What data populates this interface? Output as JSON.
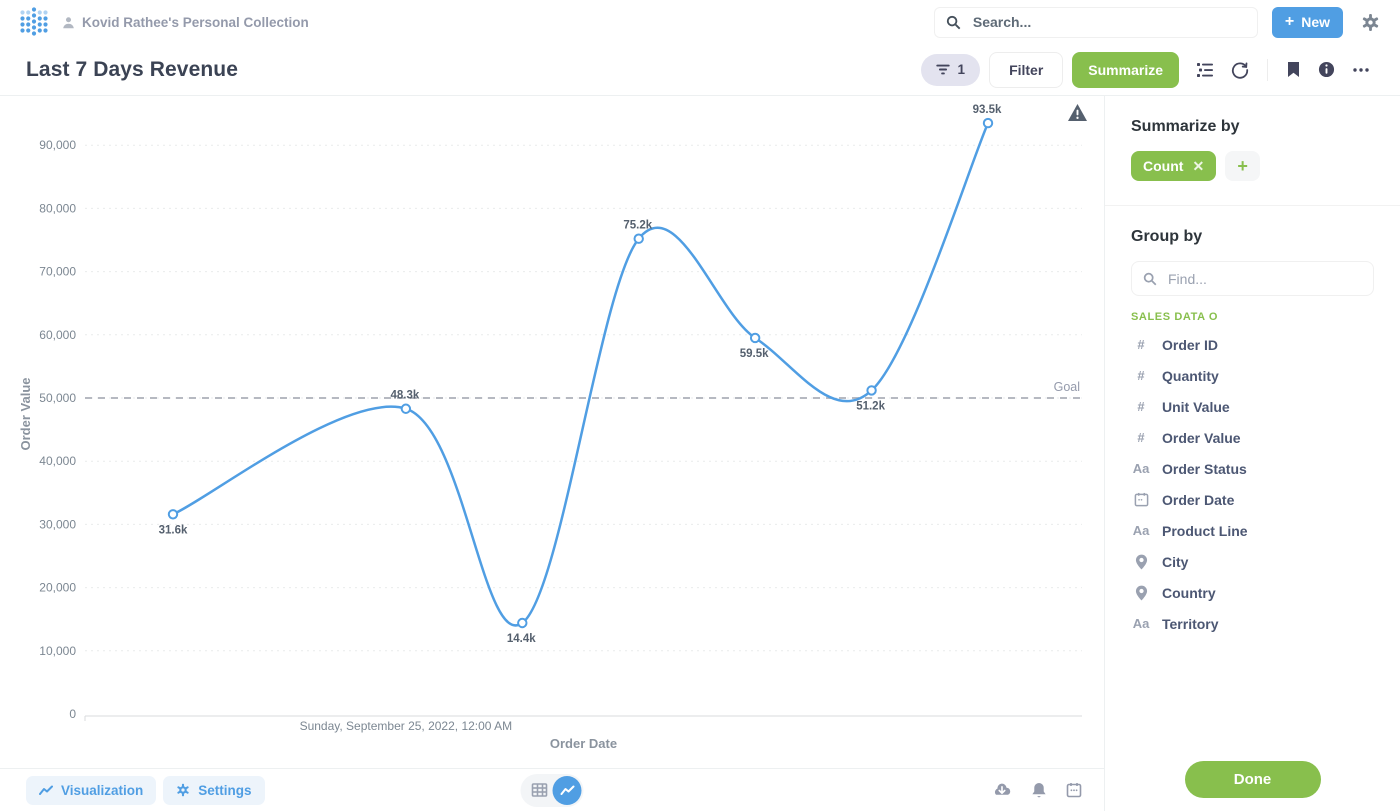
{
  "header": {
    "collection_label": "Kovid Rathee's Personal Collection",
    "search_placeholder": "Search...",
    "new_button_label": "New"
  },
  "title_bar": {
    "title": "Last 7 Days Revenue",
    "filter_count": "1",
    "filter_button_label": "Filter",
    "summarize_button_label": "Summarize"
  },
  "chart_data": {
    "type": "line",
    "title": "Last 7 Days Revenue",
    "xlabel": "Order Date",
    "ylabel": "Order Value",
    "x_tick_label": "Sunday, September 25, 2022, 12:00 AM",
    "x_tick_at_offset": 2,
    "x_day_offsets": [
      0,
      2,
      3,
      4,
      5,
      6,
      7
    ],
    "values": [
      31600,
      48300,
      14400,
      75200,
      59500,
      51200,
      93500
    ],
    "point_labels": [
      "31.6k",
      "48.3k",
      "14.4k",
      "75.2k",
      "59.5k",
      "51.2k",
      "93.5k"
    ],
    "label_positions": [
      "below",
      "above",
      "below",
      "above",
      "below",
      "below",
      "above"
    ],
    "y_ticks": [
      0,
      10000,
      20000,
      30000,
      40000,
      50000,
      60000,
      70000,
      80000,
      90000
    ],
    "ylim": [
      0,
      95000
    ],
    "goal": {
      "value": 50000,
      "label": "Goal"
    },
    "line_color": "#509EE3",
    "grid": true,
    "legend": "none"
  },
  "sidebar": {
    "summarize_by": {
      "heading": "Summarize by",
      "metric_label": "Count"
    },
    "group_by": {
      "heading": "Group by",
      "find_placeholder": "Find...",
      "section_label": "SALES DATA O",
      "fields": [
        {
          "label": "Order ID",
          "type": "number"
        },
        {
          "label": "Quantity",
          "type": "number"
        },
        {
          "label": "Unit Value",
          "type": "number"
        },
        {
          "label": "Order Value",
          "type": "number"
        },
        {
          "label": "Order Status",
          "type": "text"
        },
        {
          "label": "Order Date",
          "type": "date"
        },
        {
          "label": "Product Line",
          "type": "text"
        },
        {
          "label": "City",
          "type": "location"
        },
        {
          "label": "Country",
          "type": "location"
        },
        {
          "label": "Territory",
          "type": "text"
        }
      ]
    },
    "done_button_label": "Done"
  },
  "footer": {
    "visualization_button_label": "Visualization",
    "settings_button_label": "Settings"
  },
  "icons": {
    "number_glyph": "#",
    "text_glyph": "Aa"
  },
  "colors": {
    "brand_blue": "#509EE3",
    "accent_green": "#88BF4D",
    "text_dark": "#3B4354",
    "text_gray": "#949AAB"
  }
}
